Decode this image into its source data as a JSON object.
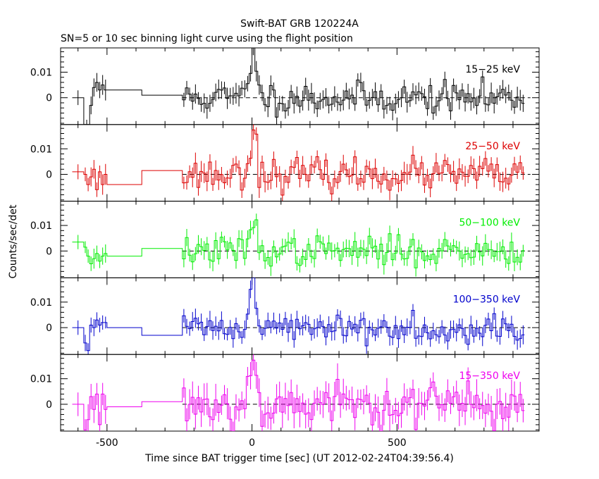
{
  "chart_data": {
    "type": "line",
    "title": "Swift-BAT GRB 120224A",
    "subtitle": "SN=5 or 10 sec binning light curve using the flight position",
    "xlabel": "Time since BAT trigger time [sec] (UT 2012-02-24T04:39:56.4)",
    "ylabel": "Counts/sec/det",
    "xlim": [
      -660,
      990
    ],
    "ylim": [
      -0.0105,
      0.0195
    ],
    "x_ticks": [
      "-500",
      "0",
      "500"
    ],
    "y_ticks": [
      "0.01",
      "0"
    ],
    "zero_line_dashed": true,
    "panels": [
      {
        "name": "15-25 keV",
        "label": "15−25 keV",
        "color": "#000000",
        "seed": 11,
        "noise": 0.003,
        "peak": 0.022,
        "early": [
          [
            -620,
            -580,
            0.0
          ],
          [
            -580,
            -560,
            -0.012
          ],
          [
            -560,
            -550,
            -0.003
          ],
          [
            -550,
            -540,
            0.004
          ],
          [
            -540,
            -530,
            0.006
          ],
          [
            -530,
            -520,
            0.003
          ],
          [
            -520,
            -510,
            0.005
          ],
          [
            -510,
            -500,
            0.003
          ],
          [
            -500,
            -380,
            0.003
          ],
          [
            -380,
            -240,
            0.001
          ]
        ]
      },
      {
        "name": "25-50 keV",
        "label": "25−50 keV",
        "color": "#dd0000",
        "seed": 23,
        "noise": 0.003,
        "peak": 0.02,
        "early": [
          [
            -620,
            -580,
            0.001
          ],
          [
            -580,
            -570,
            0.0
          ],
          [
            -570,
            -560,
            -0.004
          ],
          [
            -560,
            -550,
            -0.001
          ],
          [
            -550,
            -540,
            0.002
          ],
          [
            -540,
            -530,
            -0.006
          ],
          [
            -530,
            -520,
            0.001
          ],
          [
            -520,
            -510,
            -0.004
          ],
          [
            -510,
            -500,
            0.0
          ],
          [
            -500,
            -380,
            -0.004
          ],
          [
            -380,
            -240,
            0.0015
          ]
        ]
      },
      {
        "name": "50-100 keV",
        "label": "50−100 keV",
        "color": "#00ee00",
        "seed": 37,
        "noise": 0.0028,
        "peak": 0.012,
        "early": [
          [
            -620,
            -580,
            0.0035
          ],
          [
            -580,
            -570,
            0.0015
          ],
          [
            -570,
            -560,
            -0.002
          ],
          [
            -560,
            -550,
            -0.005
          ],
          [
            -550,
            -540,
            -0.003
          ],
          [
            -540,
            -530,
            -0.001
          ],
          [
            -530,
            -520,
            -0.004
          ],
          [
            -520,
            -510,
            -0.002
          ],
          [
            -510,
            -500,
            -0.001
          ],
          [
            -500,
            -380,
            -0.002
          ],
          [
            -380,
            -240,
            0.001
          ]
        ]
      },
      {
        "name": "100-350 keV",
        "label": "100−350 keV",
        "color": "#0000cc",
        "seed": 41,
        "noise": 0.0028,
        "peak": 0.022,
        "early": [
          [
            -620,
            -580,
            0.0
          ],
          [
            -580,
            -570,
            -0.006
          ],
          [
            -570,
            -560,
            -0.009
          ],
          [
            -560,
            -550,
            0.001
          ],
          [
            -550,
            -540,
            0.0
          ],
          [
            -540,
            -530,
            0.003
          ],
          [
            -530,
            -520,
            0.001
          ],
          [
            -520,
            -510,
            0.002
          ],
          [
            -510,
            -500,
            0.002
          ],
          [
            -500,
            -380,
            0.0
          ],
          [
            -380,
            -240,
            -0.003
          ]
        ]
      },
      {
        "name": "15-350 keV",
        "label": "15−350 keV",
        "color": "#ee00ee",
        "seed": 53,
        "noise": 0.0045,
        "peak": 0.019,
        "early": [
          [
            -620,
            -580,
            0.0
          ],
          [
            -580,
            -570,
            -0.01
          ],
          [
            -570,
            -560,
            -0.006
          ],
          [
            -560,
            -550,
            0.003
          ],
          [
            -550,
            -540,
            -0.002
          ],
          [
            -540,
            -530,
            0.004
          ],
          [
            -530,
            -520,
            -0.008
          ],
          [
            -520,
            -510,
            0.004
          ],
          [
            -510,
            -500,
            -0.002
          ],
          [
            -500,
            -380,
            -0.001
          ],
          [
            -380,
            -240,
            0.001
          ]
        ]
      }
    ]
  }
}
